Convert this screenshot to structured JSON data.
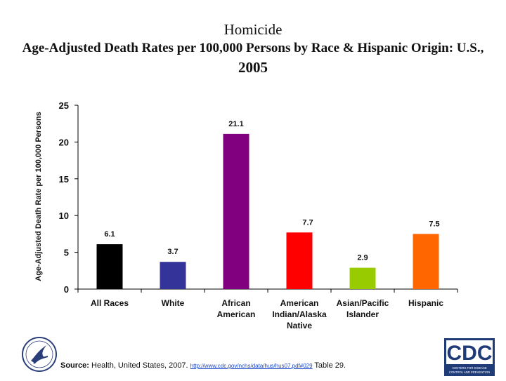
{
  "chart_data": {
    "type": "bar",
    "title": "Homicide",
    "subtitle_line1": "Age-Adjusted Death Rates per 100,000 Persons by Race & Hispanic Origin: U.S.,",
    "subtitle_line2": "2005",
    "ylabel": "Age-Adjusted Death Rate per 100,000 Persons",
    "xlabel": "",
    "ylim": [
      0,
      25
    ],
    "yticks": [
      "0",
      "5",
      "10",
      "15",
      "20",
      "25"
    ],
    "categories": [
      [
        "All Races"
      ],
      [
        "White"
      ],
      [
        "African",
        "American"
      ],
      [
        "American",
        "Indian/Alaska",
        "Native"
      ],
      [
        "Asian/Pacific",
        "Islander"
      ],
      [
        "Hispanic"
      ]
    ],
    "values": [
      6.1,
      3.7,
      21.1,
      7.7,
      2.9,
      7.5
    ],
    "value_labels": [
      "6.1",
      "3.7",
      "21.1",
      "7.7",
      "2.9",
      "7.5"
    ],
    "colors": [
      "#000000",
      "#333399",
      "#800080",
      "#ff0000",
      "#99cc00",
      "#ff6600"
    ],
    "grid": false,
    "legend": "none"
  },
  "footer": {
    "source_label": "Source:",
    "source_text": " Health, United States, 2007. ",
    "link_text": "http://www.cdc.gov/nchs/data/hus/hus07.pdf#029",
    "table_text": " Table 29."
  },
  "logos": {
    "hhs": "hhs-eagle-icon",
    "cdc": "CDC",
    "cdc_tagline": "CENTERS FOR DISEASE CONTROL AND PREVENTION"
  }
}
